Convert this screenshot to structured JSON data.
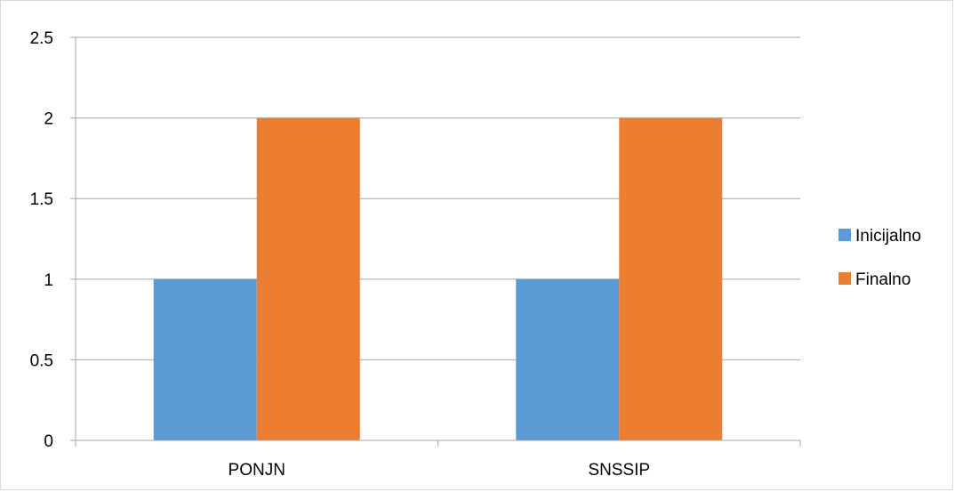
{
  "chart_data": {
    "type": "bar",
    "categories": [
      "PONJN",
      "SNSSIP"
    ],
    "series": [
      {
        "name": "Inicijalno",
        "values": [
          1,
          1
        ],
        "color": "#5B9BD5"
      },
      {
        "name": "Finalno",
        "values": [
          2,
          2
        ],
        "color": "#ED7D31"
      }
    ],
    "ylim": [
      0,
      2.5
    ],
    "yticks": [
      "0",
      "0.5",
      "1",
      "1.5",
      "2",
      "2.5"
    ],
    "grid": true,
    "legend_position": "right"
  }
}
